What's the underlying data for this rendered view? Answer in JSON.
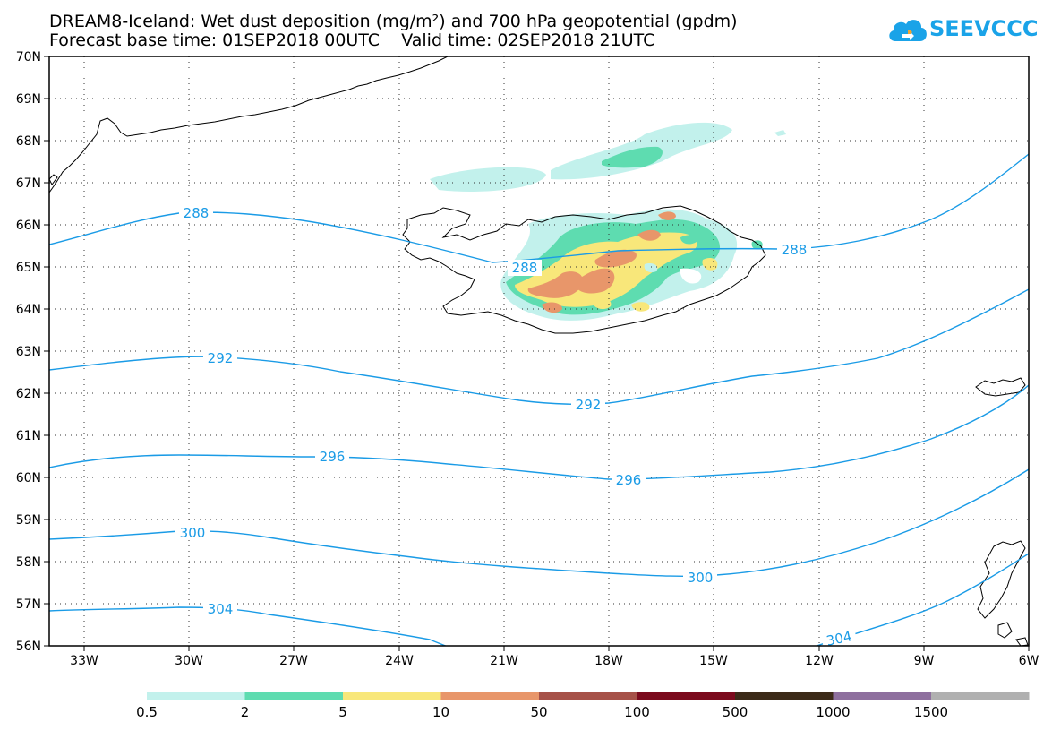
{
  "title": {
    "line1": "DREAM8-Iceland: Wet dust deposition (mg/m²) and 700 hPa geopotential (gpdm)",
    "line2": "Forecast base time: 01SEP2018 00UTC    Valid time: 02SEP2018 21UTC"
  },
  "logo": {
    "text": "SEEVCCC",
    "icon": "cloud-icon",
    "color": "#1aa3e8"
  },
  "map": {
    "lon_range": [
      -34.2,
      -6
    ],
    "lat_range": [
      56,
      70
    ],
    "lat_ticks": [
      "70N",
      "69N",
      "68N",
      "67N",
      "66N",
      "65N",
      "64N",
      "63N",
      "62N",
      "61N",
      "60N",
      "59N",
      "58N",
      "57N",
      "56N"
    ],
    "lon_ticks": [
      "33W",
      "30W",
      "27W",
      "24W",
      "21W",
      "18W",
      "15W",
      "12W",
      "9W",
      "6W"
    ],
    "grid": "dotted",
    "contour_color": "#1a9be6",
    "contour_labels": [
      {
        "text": "288"
      },
      {
        "text": "288"
      },
      {
        "text": "288"
      },
      {
        "text": "292"
      },
      {
        "text": "292"
      },
      {
        "text": "296"
      },
      {
        "text": "296"
      },
      {
        "text": "300"
      },
      {
        "text": "300"
      },
      {
        "text": "304"
      },
      {
        "text": "304"
      }
    ]
  },
  "colorbar": {
    "colors": [
      "#c2f1ec",
      "#5edcb0",
      "#f8e77a",
      "#e8966a",
      "#a65148",
      "#7b0a1d",
      "#3c2a18",
      "#8e6f9e",
      "#b0b0b0"
    ],
    "labels": [
      "0.5",
      "2",
      "5",
      "10",
      "50",
      "100",
      "500",
      "1000",
      "1500"
    ]
  }
}
